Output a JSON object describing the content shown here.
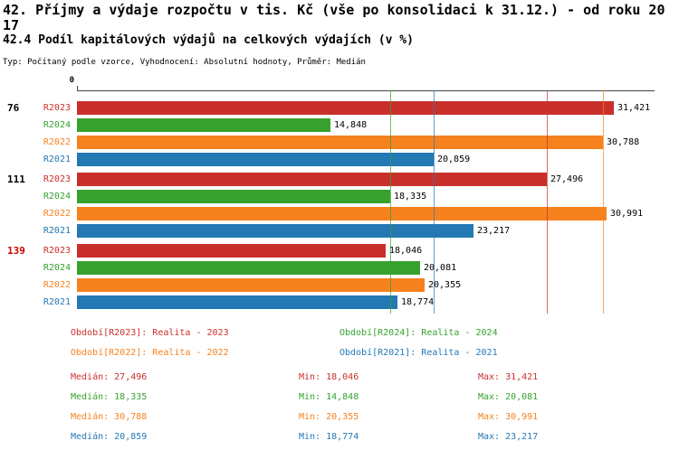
{
  "header": {
    "title": "42. Příjmy a výdaje rozpočtu v tis. Kč (vše po konsolidaci k 31.12.) - od roku 2017",
    "subtitle": "42.4 Podíl kapitálových výdajů na celkových výdajích (v %)",
    "meta": "Typ: Počítaný podle vzorce, Vyhodnocení: Absolutní hodnoty, Průměr: Medián"
  },
  "chart_data": {
    "type": "bar",
    "orientation": "horizontal",
    "value_unit": "tis. Kč",
    "axis": {
      "zero_label": "0",
      "min": 0,
      "max": 33800
    },
    "series": [
      {
        "key": "R2023",
        "name": "Realita - 2023",
        "color": "#c9302c",
        "median": 27496,
        "min": 18046,
        "max": 31421
      },
      {
        "key": "R2024",
        "name": "Realita - 2024",
        "color": "#36a22d",
        "median": 18335,
        "min": 14848,
        "max": 20081
      },
      {
        "key": "R2022",
        "name": "Realita - 2022",
        "color": "#f6821f",
        "median": 30788,
        "min": 20355,
        "max": 30991
      },
      {
        "key": "R2021",
        "name": "Realita - 2021",
        "color": "#2478b4",
        "median": 20859,
        "min": 18774,
        "max": 23217
      }
    ],
    "groups": [
      {
        "row_label": "76",
        "row_label_color": "#000000",
        "bars": [
          {
            "series": "R2023",
            "value": 31421,
            "label": "31,421"
          },
          {
            "series": "R2024",
            "value": 14848,
            "label": "14,848"
          },
          {
            "series": "R2022",
            "value": 30788,
            "label": "30,788"
          },
          {
            "series": "R2021",
            "value": 20859,
            "label": "20,859"
          }
        ]
      },
      {
        "row_label": "111",
        "row_label_color": "#000000",
        "bars": [
          {
            "series": "R2023",
            "value": 27496,
            "label": "27,496"
          },
          {
            "series": "R2024",
            "value": 18335,
            "label": "18,335"
          },
          {
            "series": "R2022",
            "value": 30991,
            "label": "30,991"
          },
          {
            "series": "R2021",
            "value": 23217,
            "label": "23,217"
          }
        ]
      },
      {
        "row_label": "139",
        "row_label_color": "#cc0000",
        "bars": [
          {
            "series": "R2023",
            "value": 18046,
            "label": "18,046"
          },
          {
            "series": "R2024",
            "value": 20081,
            "label": "20,081"
          },
          {
            "series": "R2022",
            "value": 20355,
            "label": "20,355"
          },
          {
            "series": "R2021",
            "value": 18774,
            "label": "18,774"
          }
        ]
      }
    ]
  },
  "legend": [
    {
      "text": "Období[R2023]: Realita - 2023",
      "color": "#c9302c"
    },
    {
      "text": "Období[R2024]: Realita - 2024",
      "color": "#36a22d"
    },
    {
      "text": "Období[R2022]: Realita - 2022",
      "color": "#f6821f"
    },
    {
      "text": "Období[R2021]: Realita - 2021",
      "color": "#2478b4"
    }
  ],
  "stats": [
    {
      "color": "#c9302c",
      "median": "Medián: 27,496",
      "min": "Min: 18,046",
      "max": "Max: 31,421"
    },
    {
      "color": "#36a22d",
      "median": "Medián: 18,335",
      "min": "Min: 14,848",
      "max": "Max: 20,081"
    },
    {
      "color": "#f6821f",
      "median": "Medián: 30,788",
      "min": "Min: 20,355",
      "max": "Max: 30,991"
    },
    {
      "color": "#2478b4",
      "median": "Medián: 20,859",
      "min": "Min: 18,774",
      "max": "Max: 23,217"
    }
  ]
}
